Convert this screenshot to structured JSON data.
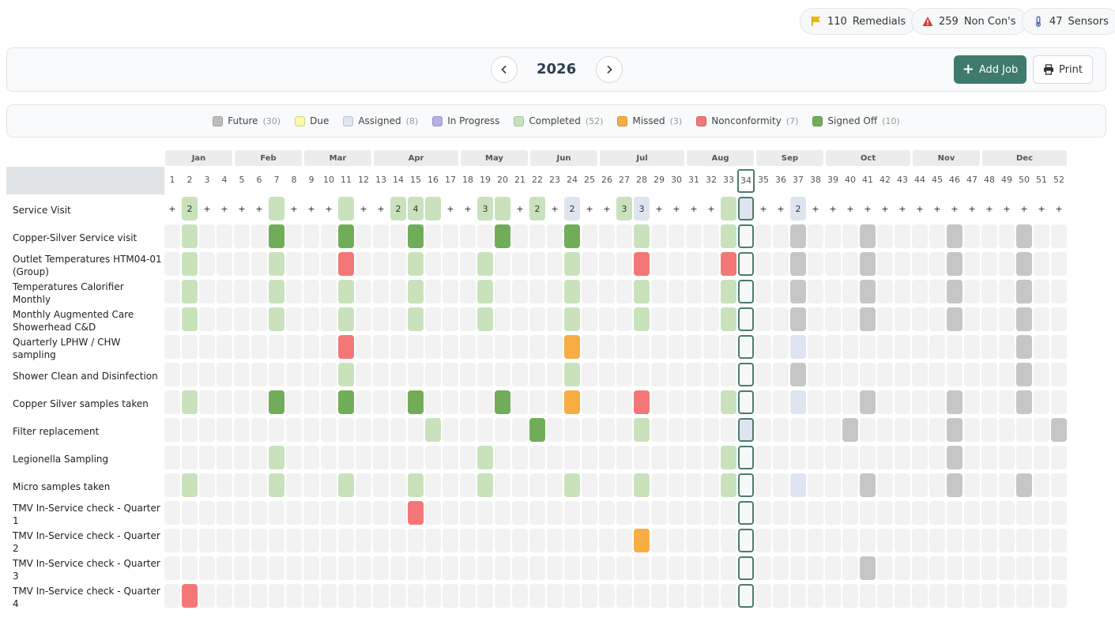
{
  "stats": [
    {
      "icon": "flag-icon",
      "count": "110",
      "label": "Remedials",
      "color": "#f5b400"
    },
    {
      "icon": "warning-icon",
      "count": "259",
      "label": "Non Con's",
      "color": "#d93a3a"
    },
    {
      "icon": "thermometer-icon",
      "count": "47",
      "label": "Sensors",
      "color": "#4a5ea8"
    }
  ],
  "header": {
    "year": "2026",
    "add_job_label": "Add Job",
    "print_label": "Print"
  },
  "legend": [
    {
      "label": "Future",
      "count": "(30)",
      "color": "#bdbdbd"
    },
    {
      "label": "Due",
      "count": "",
      "color": "#fbf8a6"
    },
    {
      "label": "Assigned",
      "count": "(8)",
      "color": "#dfe5f0"
    },
    {
      "label": "In Progress",
      "count": "",
      "color": "#b5aeea"
    },
    {
      "label": "Completed",
      "count": "(52)",
      "color": "#c9e2bc"
    },
    {
      "label": "Missed",
      "count": "(3)",
      "color": "#f8ad42"
    },
    {
      "label": "Nonconformity",
      "count": "(7)",
      "color": "#f47777"
    },
    {
      "label": "Signed Off",
      "count": "(10)",
      "color": "#71ad58"
    }
  ],
  "months": [
    "Jan",
    "Feb",
    "Mar",
    "Apr",
    "May",
    "Jun",
    "Jul",
    "Aug",
    "Sep",
    "Oct",
    "Nov",
    "Dec"
  ],
  "current_week": 34,
  "status_colors": {
    "F": "#c6c6c6",
    "A": "#dfe5f0",
    "C": "#c9e2bc",
    "S": "#71ad58",
    "M": "#f8ad42",
    "N": "#f47777",
    "E": "#f2f2f2"
  },
  "service_visit": {
    "label": "Service Visit",
    "cells": {
      "2": {
        "s": "C",
        "t": "2"
      },
      "7": {
        "s": "C",
        "t": ""
      },
      "11": {
        "s": "C",
        "t": ""
      },
      "14": {
        "s": "C",
        "t": "2"
      },
      "15": {
        "s": "C",
        "t": "4"
      },
      "16": {
        "s": "C",
        "t": ""
      },
      "19": {
        "s": "C",
        "t": "3"
      },
      "20": {
        "s": "C",
        "t": ""
      },
      "22": {
        "s": "C",
        "t": "2"
      },
      "24": {
        "s": "A",
        "t": "2"
      },
      "27": {
        "s": "C",
        "t": "3"
      },
      "28": {
        "s": "A",
        "t": "3"
      },
      "33": {
        "s": "C",
        "t": ""
      },
      "34": {
        "s": "A",
        "t": ""
      },
      "37": {
        "s": "A",
        "t": "2"
      }
    }
  },
  "rows": [
    {
      "label": "Copper-Silver Service visit",
      "cells": {
        "2": "C",
        "7": "S",
        "11": "S",
        "15": "S",
        "20": "S",
        "24": "S",
        "28": "C",
        "33": "C",
        "37": "F",
        "41": "F",
        "46": "F",
        "50": "F"
      }
    },
    {
      "label": "Outlet Temperatures HTM04-01 (Group)",
      "cells": {
        "2": "C",
        "7": "C",
        "11": "N",
        "15": "C",
        "19": "C",
        "24": "C",
        "28": "N",
        "33": "N",
        "37": "F",
        "41": "F",
        "46": "F",
        "50": "F"
      }
    },
    {
      "label": "Temperatures Calorifier Monthly",
      "cells": {
        "2": "C",
        "7": "C",
        "11": "C",
        "15": "C",
        "19": "C",
        "24": "C",
        "28": "C",
        "33": "C",
        "37": "F",
        "41": "F",
        "46": "F",
        "50": "F"
      }
    },
    {
      "label": "Monthly Augmented Care Showerhead C&D",
      "cells": {
        "2": "C",
        "7": "C",
        "11": "C",
        "15": "C",
        "19": "C",
        "24": "C",
        "28": "C",
        "33": "C",
        "37": "F",
        "41": "F",
        "46": "F",
        "50": "F"
      }
    },
    {
      "label": "Quarterly LPHW / CHW sampling",
      "cells": {
        "11": "N",
        "24": "M",
        "37": "A",
        "50": "F"
      }
    },
    {
      "label": "Shower Clean and Disinfection",
      "cells": {
        "11": "C",
        "24": "C",
        "37": "F",
        "50": "F"
      }
    },
    {
      "label": "Copper Silver samples taken",
      "cells": {
        "2": "C",
        "7": "S",
        "11": "S",
        "15": "S",
        "20": "S",
        "24": "M",
        "28": "N",
        "33": "C",
        "37": "A",
        "41": "F",
        "46": "F",
        "50": "F"
      }
    },
    {
      "label": "Filter replacement",
      "cells": {
        "16": "C",
        "22": "S",
        "28": "C",
        "34": "A",
        "40": "F",
        "46": "F",
        "52": "F"
      }
    },
    {
      "label": "Legionella Sampling",
      "cells": {
        "7": "C",
        "19": "C",
        "33": "C",
        "46": "F"
      }
    },
    {
      "label": "Micro samples taken",
      "cells": {
        "2": "C",
        "7": "C",
        "11": "C",
        "15": "C",
        "19": "C",
        "24": "C",
        "28": "C",
        "33": "C",
        "37": "A",
        "41": "F",
        "46": "F",
        "50": "F"
      }
    },
    {
      "label": "TMV In-Service check - Quarter 1",
      "cells": {
        "15": "N"
      }
    },
    {
      "label": "TMV In-Service check - Quarter 2",
      "cells": {
        "28": "M"
      }
    },
    {
      "label": "TMV In-Service check - Quarter 3",
      "cells": {
        "41": "F"
      }
    },
    {
      "label": "TMV In-Service check - Quarter 4",
      "cells": {
        "2": "N"
      }
    }
  ]
}
